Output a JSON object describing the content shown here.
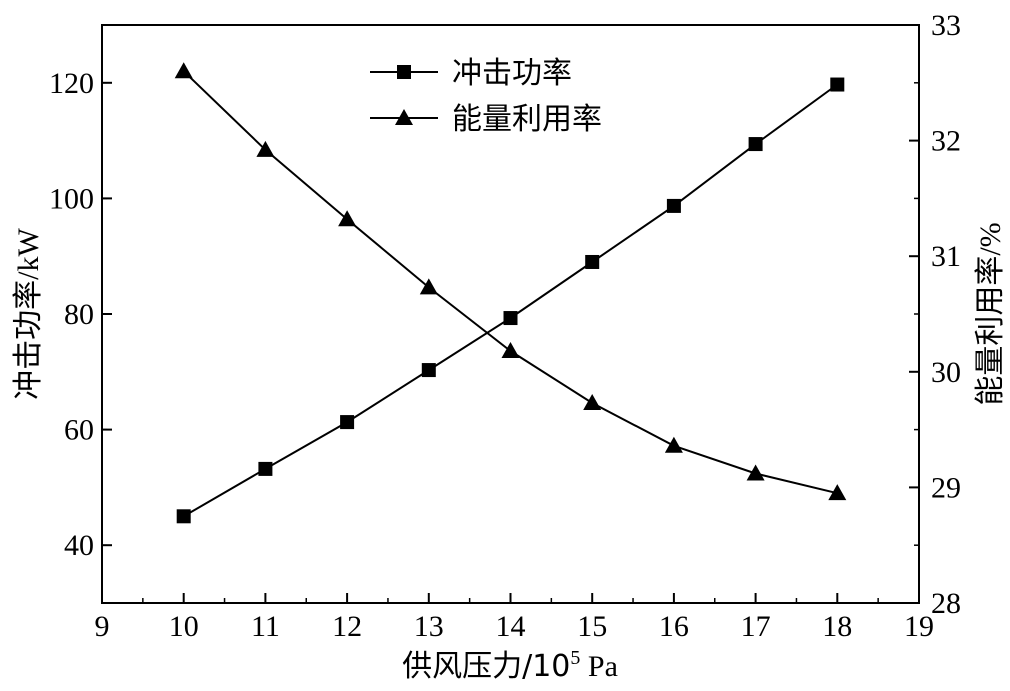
{
  "chart_data": {
    "type": "line",
    "x": [
      10,
      11,
      12,
      13,
      14,
      15,
      16,
      17,
      18
    ],
    "xlim": [
      9,
      19
    ],
    "x_ticks": [
      "9",
      "10",
      "11",
      "12",
      "13",
      "14",
      "15",
      "16",
      "17",
      "18",
      "19"
    ],
    "y_left_ticks": [
      "40",
      "60",
      "80",
      "100",
      "120"
    ],
    "y_right_ticks": [
      "28",
      "29",
      "30",
      "31",
      "32",
      "33"
    ],
    "ylim_left": [
      30,
      130
    ],
    "ylim_right": [
      28,
      33
    ],
    "xlabel_main": "供风压力/10",
    "xlabel_sup": "5",
    "xlabel_unit": " Pa",
    "ylabel_left_text": "冲击功率",
    "ylabel_left_unit": "/kW",
    "ylabel_right_text": "能量利用率",
    "ylabel_right_unit": "/%",
    "legend_position": "top-center",
    "grid": false,
    "series": [
      {
        "name": "冲击功率",
        "axis": "left",
        "marker": "square",
        "color": "#000000",
        "values": [
          45,
          53.2,
          61.3,
          70.3,
          79.3,
          89,
          98.7,
          109.4,
          119.7
        ]
      },
      {
        "name": "能量利用率",
        "axis": "right",
        "marker": "triangle",
        "color": "#000000",
        "values": [
          32.6,
          31.92,
          31.32,
          30.73,
          30.18,
          29.73,
          29.36,
          29.12,
          28.95
        ]
      }
    ]
  }
}
